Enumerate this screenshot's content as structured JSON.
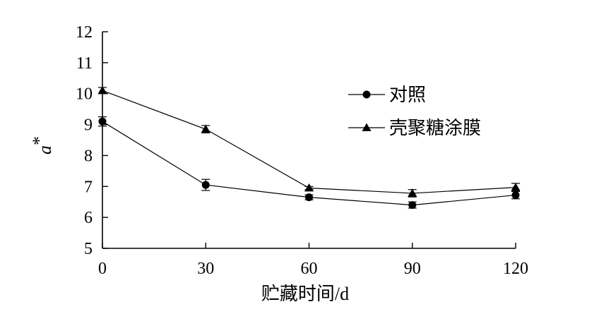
{
  "chart_data": {
    "type": "line",
    "x": [
      0,
      30,
      60,
      90,
      120
    ],
    "xlabel": "贮藏时间/d",
    "ylabel": "a*",
    "xlim": [
      0,
      120
    ],
    "ylim": [
      5,
      12
    ],
    "xticks": [
      0,
      30,
      60,
      90,
      120
    ],
    "yticks": [
      5,
      6,
      7,
      8,
      9,
      10,
      11,
      12
    ],
    "grid": false,
    "legend_position": "top-right",
    "series": [
      {
        "name": "对照",
        "marker": "circle",
        "values": [
          9.1,
          7.05,
          6.65,
          6.4,
          6.72
        ],
        "errors": [
          0.15,
          0.18,
          0.08,
          0.1,
          0.12
        ]
      },
      {
        "name": "壳聚糖涂膜",
        "marker": "triangle",
        "values": [
          10.1,
          8.85,
          6.95,
          6.78,
          6.97
        ],
        "errors": [
          0.1,
          0.12,
          0.05,
          0.12,
          0.13
        ]
      }
    ]
  }
}
